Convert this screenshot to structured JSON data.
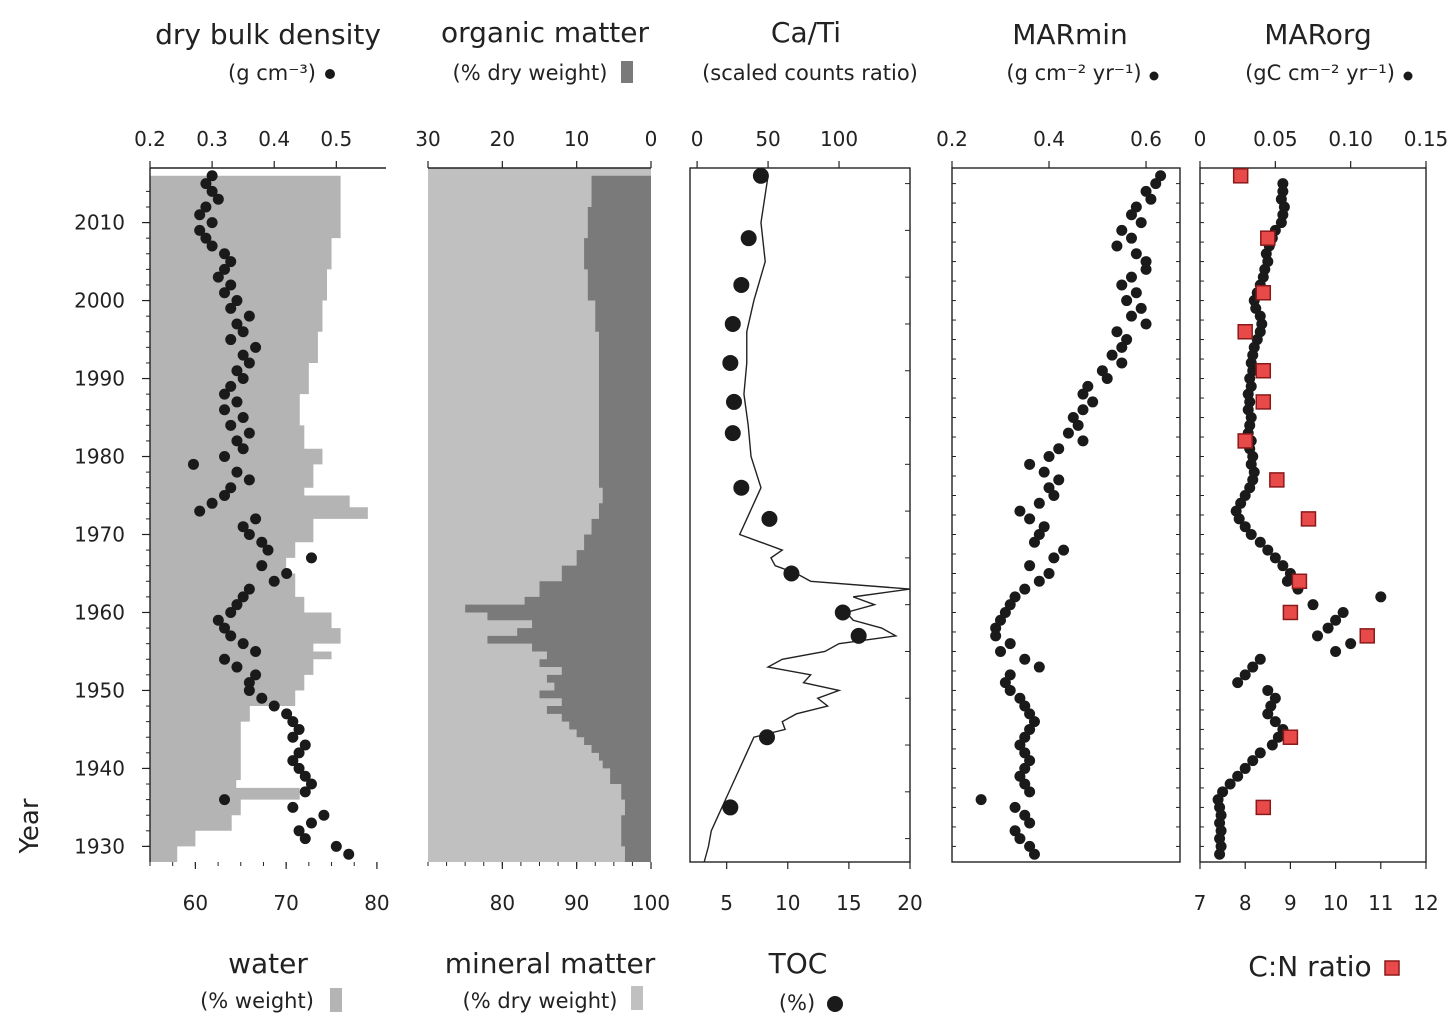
{
  "colors": {
    "water": "#b4b4b4",
    "mineral": "#c0c0c0",
    "organic": "#7a7a7a",
    "dot": "#1a1a1a",
    "cn_fill": "#e84a4a",
    "cn_edge": "#8a1a1a"
  },
  "chart_data": [
    {
      "type": "area",
      "title": "dry bulk density",
      "top_axis": {
        "unit": "(g cm⁻³)",
        "range": [
          0.2,
          0.58
        ],
        "ticks": [
          "0.2",
          "0.3",
          "0.4",
          "0.5"
        ]
      },
      "bottom_axis": {
        "title": "water",
        "unit": "(% weight)",
        "range": [
          55,
          81
        ],
        "ticks": [
          "60",
          "70",
          "80"
        ]
      },
      "y_axis": {
        "label": "Year",
        "range": [
          1928,
          2017
        ],
        "ticks": [
          "1930",
          "1940",
          "1950",
          "1960",
          "1970",
          "1980",
          "1990",
          "2000",
          "2010"
        ]
      },
      "water_series": {
        "name": "water",
        "year": [
          2016,
          2012,
          2008,
          2004,
          2000,
          1996,
          1992,
          1988,
          1984,
          1981,
          1979,
          1976,
          1975,
          1973.5,
          1972,
          1969,
          1967,
          1965,
          1962,
          1960,
          1958,
          1956,
          1955,
          1954,
          1952,
          1950,
          1948,
          1946,
          1944,
          1942,
          1940,
          1938.5,
          1937.5,
          1936,
          1934,
          1932,
          1930,
          1928
        ],
        "values": [
          76,
          76,
          75,
          74.5,
          74,
          73.5,
          72.5,
          71.5,
          72,
          74,
          73,
          72,
          77,
          79,
          73,
          71,
          70,
          71,
          72,
          75,
          76,
          73,
          75,
          73,
          72,
          71,
          66,
          65,
          65,
          65,
          65,
          64.5,
          71.5,
          65,
          64,
          60,
          58,
          56
        ]
      },
      "density_series": {
        "name": "dry bulk density",
        "year": [
          2016,
          2015,
          2014,
          2013,
          2012,
          2011,
          2010,
          2009,
          2008,
          2007,
          2006,
          2005,
          2004,
          2003,
          2002,
          2001,
          2000,
          1999,
          1998,
          1997,
          1996,
          1995,
          1994,
          1993,
          1992,
          1991,
          1990,
          1989,
          1988,
          1987,
          1986,
          1985,
          1984,
          1983,
          1982,
          1981,
          1980,
          1979,
          1978,
          1977,
          1976,
          1975,
          1974,
          1973,
          1972,
          1971,
          1970,
          1969,
          1968,
          1967,
          1966,
          1965,
          1964,
          1963,
          1962,
          1961,
          1960,
          1959,
          1958,
          1957,
          1956,
          1955,
          1954,
          1953,
          1952,
          1951,
          1950,
          1949,
          1948,
          1947,
          1946,
          1945,
          1944,
          1943,
          1942,
          1941,
          1940,
          1939,
          1938,
          1937,
          1936,
          1935,
          1934,
          1933,
          1932,
          1931,
          1930,
          1929
        ],
        "values": [
          0.3,
          0.29,
          0.3,
          0.31,
          0.29,
          0.28,
          0.3,
          0.28,
          0.29,
          0.3,
          0.32,
          0.33,
          0.32,
          0.31,
          0.33,
          0.32,
          0.34,
          0.33,
          0.36,
          0.34,
          0.35,
          0.33,
          0.37,
          0.35,
          0.36,
          0.34,
          0.35,
          0.33,
          0.32,
          0.34,
          0.32,
          0.35,
          0.33,
          0.36,
          0.34,
          0.35,
          0.32,
          0.27,
          0.34,
          0.36,
          0.33,
          0.32,
          0.3,
          0.28,
          0.37,
          0.35,
          0.36,
          0.38,
          0.39,
          0.46,
          0.38,
          0.42,
          0.4,
          0.36,
          0.35,
          0.34,
          0.33,
          0.31,
          0.32,
          0.33,
          0.35,
          0.37,
          0.32,
          0.34,
          0.37,
          0.36,
          0.36,
          0.38,
          0.4,
          0.42,
          0.43,
          0.44,
          0.43,
          0.45,
          0.44,
          0.43,
          0.44,
          0.45,
          0.46,
          0.45,
          0.32,
          0.43,
          0.48,
          0.46,
          0.44,
          0.45,
          0.5,
          0.52
        ]
      }
    },
    {
      "type": "area",
      "title": "organic matter",
      "top_axis": {
        "unit": "(% dry weight)",
        "range": [
          30,
          0
        ],
        "ticks": [
          "30",
          "20",
          "10",
          "0"
        ]
      },
      "bottom_axis": {
        "title": "mineral matter",
        "unit": "(% dry weight)",
        "range": [
          70,
          100
        ],
        "ticks": [
          "80",
          "90",
          "100"
        ]
      },
      "y_axis": {
        "range": [
          1928,
          2017
        ]
      },
      "organic_series": {
        "name": "organic matter",
        "year": [
          2016,
          2012,
          2008,
          2004,
          2000,
          1996,
          1992,
          1988,
          1984,
          1980,
          1976,
          1974,
          1972,
          1970,
          1968,
          1966,
          1964,
          1962,
          1961,
          1960,
          1959,
          1958,
          1957,
          1956,
          1955,
          1954,
          1953,
          1952,
          1951,
          1950,
          1949,
          1948,
          1947,
          1946,
          1945,
          1944,
          1943,
          1942,
          1941,
          1940,
          1938,
          1936,
          1934,
          1932,
          1930,
          1928
        ],
        "values": [
          8,
          8.5,
          9,
          8.5,
          7.5,
          7,
          7,
          7,
          7,
          7,
          6.5,
          7,
          8,
          9,
          10,
          12,
          15,
          17,
          25,
          22,
          16,
          18,
          22,
          16,
          14,
          15,
          12,
          14,
          13,
          15,
          12,
          14,
          12,
          11,
          10,
          9,
          8,
          7,
          6.5,
          5.5,
          4,
          3.5,
          4,
          4,
          3.5,
          3
        ]
      }
    },
    {
      "type": "line",
      "title": "Ca/Ti",
      "top_axis": {
        "unit": "(scaled counts ratio)",
        "range": [
          -5,
          150
        ],
        "ticks": [
          "0",
          "50",
          "100"
        ]
      },
      "bottom_axis": {
        "title": "TOC",
        "unit": "(%)",
        "range": [
          2,
          20
        ],
        "ticks": [
          "5",
          "10",
          "15",
          "20"
        ]
      },
      "y_axis": {
        "range": [
          1928,
          2017
        ]
      },
      "cati_series": {
        "name": "Ca/Ti",
        "year": [
          2016,
          2010,
          2005,
          2000,
          1996,
          1992,
          1988,
          1984,
          1980,
          1976,
          1974,
          1972,
          1970,
          1969,
          1968,
          1967,
          1966,
          1965,
          1964,
          1963,
          1962,
          1961,
          1960,
          1959,
          1958,
          1957,
          1956,
          1955,
          1954,
          1953,
          1952,
          1951,
          1950,
          1949,
          1948,
          1947,
          1946,
          1945,
          1944,
          1942,
          1940,
          1938,
          1936,
          1934,
          1932,
          1930,
          1928
        ],
        "values": [
          50,
          45,
          48,
          40,
          35,
          35,
          33,
          36,
          38,
          45,
          40,
          35,
          30,
          45,
          60,
          52,
          55,
          70,
          80,
          150,
          110,
          125,
          105,
          110,
          130,
          140,
          100,
          90,
          60,
          50,
          80,
          75,
          100,
          85,
          92,
          70,
          60,
          62,
          40,
          35,
          30,
          25,
          20,
          15,
          10,
          8,
          5
        ]
      },
      "toc_series": {
        "name": "TOC",
        "year": [
          2016,
          2008,
          2002,
          1997,
          1992,
          1987,
          1983,
          1976,
          1972,
          1965,
          1960,
          1957,
          1944,
          1935
        ],
        "values": [
          7.8,
          6.8,
          6.2,
          5.5,
          5.3,
          5.6,
          5.5,
          6.2,
          8.5,
          10.3,
          14.5,
          15.8,
          8.3,
          5.3
        ]
      }
    },
    {
      "type": "scatter",
      "title": "MARmin",
      "top_axis": {
        "unit": "(g cm⁻² yr⁻¹)",
        "range": [
          0.2,
          0.67
        ],
        "ticks": [
          "0.2",
          "0.4",
          "0.6"
        ]
      },
      "y_axis": {
        "range": [
          1928,
          2017
        ]
      },
      "series": {
        "name": "MARmin",
        "year": [
          2016,
          2015,
          2014,
          2013,
          2012,
          2011,
          2010,
          2009,
          2008,
          2007,
          2006,
          2005,
          2004,
          2003,
          2002,
          2001,
          2000,
          1999,
          1998,
          1997,
          1996,
          1995,
          1994,
          1993,
          1992,
          1991,
          1990,
          1989,
          1988,
          1987,
          1986,
          1985,
          1984,
          1983,
          1982,
          1981,
          1980,
          1979,
          1978,
          1977,
          1976,
          1975,
          1974,
          1973,
          1972,
          1971,
          1970,
          1969,
          1968,
          1967,
          1966,
          1965,
          1964,
          1963,
          1962,
          1961,
          1960,
          1959,
          1958,
          1957,
          1956,
          1955,
          1954,
          1953,
          1952,
          1951,
          1950,
          1949,
          1948,
          1947,
          1946,
          1945,
          1944,
          1943,
          1942,
          1941,
          1940,
          1939,
          1938,
          1937,
          1936,
          1935,
          1934,
          1933,
          1932,
          1931,
          1930,
          1929
        ],
        "values": [
          0.63,
          0.62,
          0.6,
          0.61,
          0.58,
          0.57,
          0.59,
          0.55,
          0.57,
          0.54,
          0.58,
          0.6,
          0.6,
          0.57,
          0.55,
          0.58,
          0.56,
          0.59,
          0.57,
          0.6,
          0.54,
          0.56,
          0.55,
          0.53,
          0.55,
          0.51,
          0.52,
          0.48,
          0.47,
          0.49,
          0.47,
          0.45,
          0.46,
          0.44,
          0.47,
          0.42,
          0.4,
          0.36,
          0.39,
          0.42,
          0.4,
          0.41,
          0.38,
          0.34,
          0.36,
          0.39,
          0.38,
          0.37,
          0.43,
          0.41,
          0.36,
          0.4,
          0.38,
          0.35,
          0.33,
          0.32,
          0.31,
          0.3,
          0.29,
          0.29,
          0.32,
          0.3,
          0.35,
          0.38,
          0.32,
          0.31,
          0.32,
          0.34,
          0.35,
          0.36,
          0.37,
          0.36,
          0.35,
          0.34,
          0.35,
          0.36,
          0.35,
          0.34,
          0.35,
          0.36,
          0.26,
          0.33,
          0.35,
          0.36,
          0.33,
          0.34,
          0.36,
          0.37
        ]
      }
    },
    {
      "type": "scatter",
      "title": "MARorg",
      "top_axis": {
        "unit": "(gC cm⁻² yr⁻¹)",
        "range": [
          0,
          0.15
        ],
        "ticks": [
          "0",
          "0.05",
          "0.10",
          "0.15"
        ]
      },
      "bottom_axis": {
        "title": "C:N ratio",
        "range": [
          7,
          12
        ],
        "ticks": [
          "7",
          "8",
          "9",
          "10",
          "11",
          "12"
        ]
      },
      "y_axis": {
        "range": [
          1928,
          2017
        ]
      },
      "marorg_series": {
        "name": "MARorg",
        "year": [
          2015,
          2014,
          2013,
          2012,
          2011,
          2010,
          2009,
          2008,
          2007,
          2006,
          2005,
          2004,
          2003,
          2002,
          2001,
          2000,
          1999,
          1998,
          1997,
          1996,
          1995,
          1994,
          1993,
          1992,
          1991,
          1990,
          1989,
          1988,
          1987,
          1986,
          1985,
          1984,
          1983,
          1982,
          1981,
          1980,
          1979,
          1978,
          1977,
          1976,
          1975,
          1974,
          1973,
          1972,
          1971,
          1970,
          1969,
          1968,
          1967,
          1966,
          1965,
          1964,
          1963,
          1962,
          1961,
          1960,
          1959,
          1958,
          1957,
          1956,
          1955,
          1954,
          1953,
          1952,
          1951,
          1950,
          1949,
          1948,
          1947,
          1946,
          1945,
          1944,
          1943,
          1942,
          1941,
          1940,
          1939,
          1938,
          1937,
          1936,
          1935,
          1934,
          1933,
          1932,
          1931,
          1930,
          1929
        ],
        "values": [
          0.055,
          0.055,
          0.054,
          0.056,
          0.055,
          0.054,
          0.05,
          0.048,
          0.046,
          0.044,
          0.045,
          0.043,
          0.042,
          0.04,
          0.038,
          0.036,
          0.037,
          0.04,
          0.041,
          0.04,
          0.038,
          0.036,
          0.035,
          0.034,
          0.035,
          0.033,
          0.034,
          0.032,
          0.033,
          0.032,
          0.034,
          0.033,
          0.032,
          0.034,
          0.033,
          0.035,
          0.034,
          0.036,
          0.035,
          0.033,
          0.03,
          0.027,
          0.024,
          0.026,
          0.03,
          0.034,
          0.04,
          0.045,
          0.05,
          0.055,
          0.06,
          0.058,
          0.065,
          0.12,
          0.075,
          0.095,
          0.09,
          0.085,
          0.078,
          0.1,
          0.09,
          0.04,
          0.035,
          0.03,
          0.025,
          0.045,
          0.05,
          0.047,
          0.045,
          0.05,
          0.055,
          0.052,
          0.048,
          0.04,
          0.035,
          0.03,
          0.025,
          0.02,
          0.015,
          0.012,
          0.013,
          0.014,
          0.013,
          0.014,
          0.013,
          0.014,
          0.013
        ]
      },
      "cn_series": {
        "name": "C:N ratio",
        "year": [
          2016,
          2008,
          2001,
          1996,
          1991,
          1987,
          1982,
          1977,
          1972,
          1964,
          1960,
          1957,
          1944,
          1935
        ],
        "values": [
          7.9,
          8.5,
          8.4,
          8.0,
          8.4,
          8.4,
          8.0,
          8.7,
          9.4,
          9.2,
          9.0,
          10.7,
          9.0,
          8.4
        ]
      }
    }
  ]
}
